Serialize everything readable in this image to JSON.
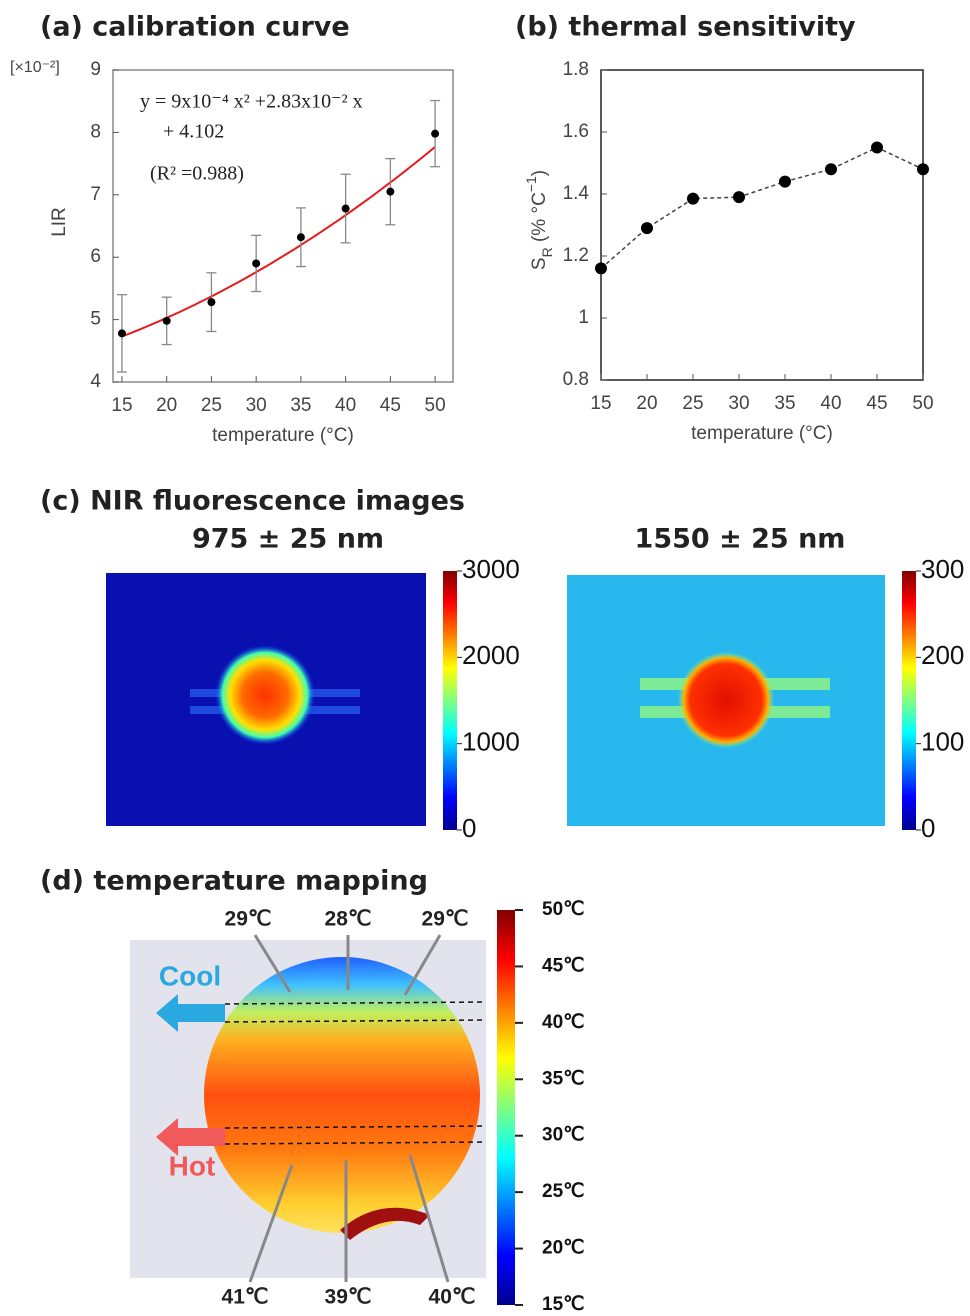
{
  "chart_data": [
    {
      "type": "scatter",
      "title": "(a) calibration curve",
      "xlabel": "temperature (°C)",
      "ylabel": "LIR",
      "y_scale_label": "[×10⁻²]",
      "equation": [
        "y = 9x10⁻⁴ x² +2.83x10⁻² x",
        "+ 4.102"
      ],
      "r_squared_label": "(R² =0.988)",
      "x": [
        15,
        20,
        25,
        30,
        35,
        40,
        45,
        50
      ],
      "values": [
        4.78,
        4.98,
        5.28,
        5.9,
        6.32,
        6.78,
        7.05,
        7.98
      ],
      "errors": [
        0.62,
        0.38,
        0.47,
        0.45,
        0.47,
        0.55,
        0.53,
        0.53
      ],
      "fit_coefficients": [
        0.0009,
        0.0283,
        4.102
      ],
      "color": "#000000",
      "fit_color": "#e8191c",
      "xlim": [
        14,
        52
      ],
      "xticks": [
        15,
        20,
        25,
        30,
        35,
        40,
        45,
        50
      ],
      "ylim": [
        4,
        9
      ],
      "yticks": [
        4,
        5,
        6,
        7,
        8,
        9
      ]
    },
    {
      "type": "line",
      "title": "(b) thermal sensitivity",
      "xlabel": "temperature (°C)",
      "ylabel_parts": [
        "S",
        "R",
        " (% °C",
        "−1",
        ")"
      ],
      "x": [
        15,
        20,
        25,
        30,
        35,
        40,
        45,
        50
      ],
      "values": [
        1.16,
        1.29,
        1.385,
        1.39,
        1.44,
        1.48,
        1.55,
        1.48
      ],
      "color": "#000000",
      "line_style": "dashed",
      "xlim": [
        15,
        50
      ],
      "xticks": [
        15,
        20,
        25,
        30,
        35,
        40,
        45,
        50
      ],
      "ylim": [
        0.8,
        1.8
      ],
      "yticks": [
        0.8,
        1,
        1.2,
        1.4,
        1.6,
        1.8
      ]
    },
    {
      "type": "image",
      "title": "(c) NIR fluorescence images",
      "panels": [
        {
          "subtitle": "975 ± 25 nm",
          "clim": [
            0,
            3000
          ],
          "cticks": [
            0,
            1000,
            2000,
            3000
          ]
        },
        {
          "subtitle": "1550 ± 25 nm",
          "clim": [
            0,
            300
          ],
          "cticks": [
            0,
            100,
            200,
            300
          ]
        }
      ]
    },
    {
      "type": "map",
      "title": "(d) temperature mapping",
      "clim": [
        15,
        50
      ],
      "cticks": [
        {
          "value": 50,
          "label": "50℃"
        },
        {
          "value": 45,
          "label": "45℃"
        },
        {
          "value": 40,
          "label": "40℃"
        },
        {
          "value": 35,
          "label": "35℃"
        },
        {
          "value": 30,
          "label": "30℃"
        },
        {
          "value": 25,
          "label": "25℃"
        },
        {
          "value": 20,
          "label": "20℃"
        },
        {
          "value": 15,
          "label": "15℃"
        }
      ],
      "arrows": [
        "Cool",
        "Hot"
      ],
      "annotations": [
        "29℃",
        "28℃",
        "29℃",
        "41℃",
        "39℃",
        "40℃"
      ]
    }
  ]
}
